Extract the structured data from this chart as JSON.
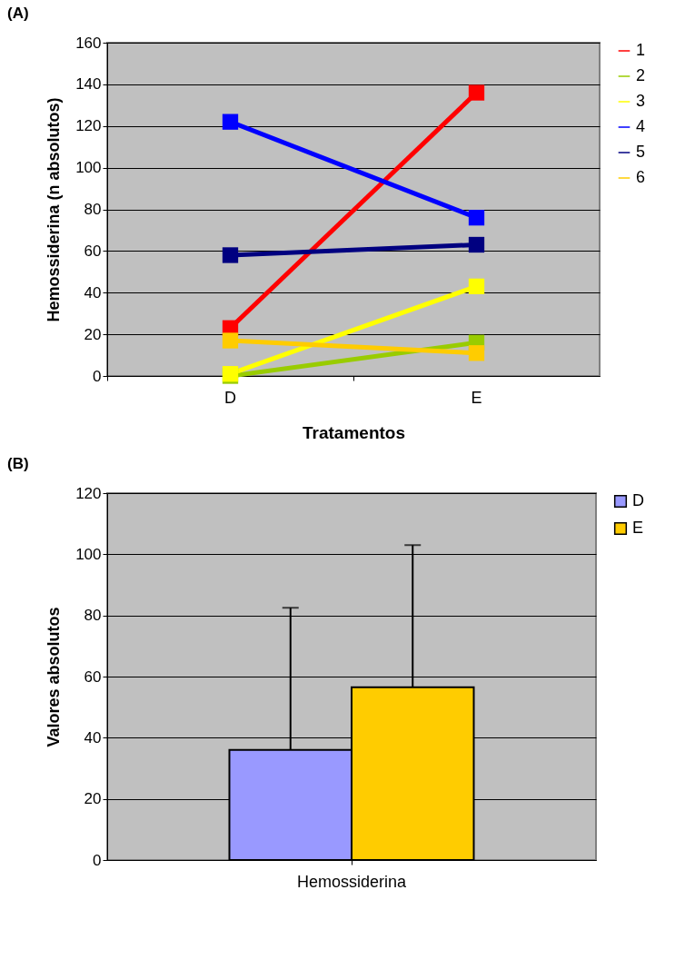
{
  "chart_data": [
    {
      "type": "line",
      "title": "(A)",
      "xlabel": "Tratamentos",
      "ylabel": "Hemossiderina (n absolutos)",
      "categories": [
        "D",
        "E"
      ],
      "series": [
        {
          "name": "1",
          "color": "#ff0000",
          "values": [
            23,
            136
          ]
        },
        {
          "name": "2",
          "color": "#99cc00",
          "values": [
            0,
            16
          ]
        },
        {
          "name": "3",
          "color": "#ffff00",
          "values": [
            1,
            43
          ]
        },
        {
          "name": "4",
          "color": "#0000ff",
          "values": [
            122,
            76
          ]
        },
        {
          "name": "5",
          "color": "#000080",
          "values": [
            58,
            63
          ]
        },
        {
          "name": "6",
          "color": "#ffcc00",
          "values": [
            17,
            11
          ]
        }
      ],
      "ylim": [
        0,
        160
      ],
      "yticks": [
        0,
        20,
        40,
        60,
        80,
        100,
        120,
        140,
        160
      ],
      "grid": "y",
      "legend": "right",
      "marker": "square"
    },
    {
      "type": "bar",
      "title": "(B)",
      "ylabel": "Valores absolutos",
      "categories": [
        "Hemossiderina"
      ],
      "series": [
        {
          "name": "D",
          "color": "#9999ff",
          "values": [
            36
          ],
          "errors": [
            [
              36,
              82.5
            ]
          ]
        },
        {
          "name": "E",
          "color": "#ffcc00",
          "values": [
            56.5
          ],
          "errors": [
            [
              56.5,
              103
            ]
          ]
        }
      ],
      "ylim": [
        0,
        120
      ],
      "yticks": [
        0,
        20,
        40,
        60,
        80,
        100,
        120
      ],
      "grid": "y",
      "legend": "right"
    }
  ]
}
